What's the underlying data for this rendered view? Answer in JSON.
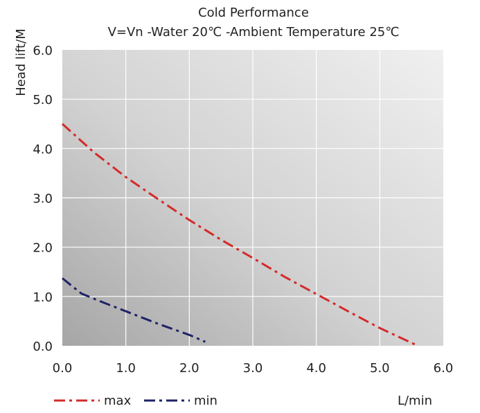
{
  "chart_data": {
    "type": "line",
    "title": "Cold Performance",
    "subtitle": "V=Vn -Water 20℃ -Ambient Temperature 25℃",
    "xlabel": "L/min",
    "ylabel": "Head lift/M",
    "xlim": [
      0,
      6
    ],
    "ylim": [
      0,
      6
    ],
    "x_ticks": [
      "0.0",
      "1.0",
      "2.0",
      "3.0",
      "4.0",
      "5.0",
      "6.0"
    ],
    "y_ticks": [
      "0.0",
      "1.0",
      "2.0",
      "3.0",
      "4.0",
      "5.0",
      "6.0"
    ],
    "grid": true,
    "legend_position": "bottom-left",
    "series": [
      {
        "name": "max",
        "color": "#d42a2a",
        "style": "dash-dot",
        "x": [
          0,
          0.5,
          1.0,
          1.5,
          2.0,
          2.5,
          3.0,
          3.5,
          4.0,
          4.5,
          5.0,
          5.6
        ],
        "y": [
          4.5,
          3.92,
          3.42,
          2.98,
          2.55,
          2.15,
          1.78,
          1.4,
          1.05,
          0.7,
          0.36,
          0.0
        ]
      },
      {
        "name": "min",
        "color": "#1e2266",
        "style": "dash-dot",
        "x": [
          0,
          0.3,
          0.6,
          1.0,
          1.5,
          2.0,
          2.25
        ],
        "y": [
          1.37,
          1.06,
          0.9,
          0.7,
          0.45,
          0.22,
          0.08
        ]
      }
    ]
  }
}
